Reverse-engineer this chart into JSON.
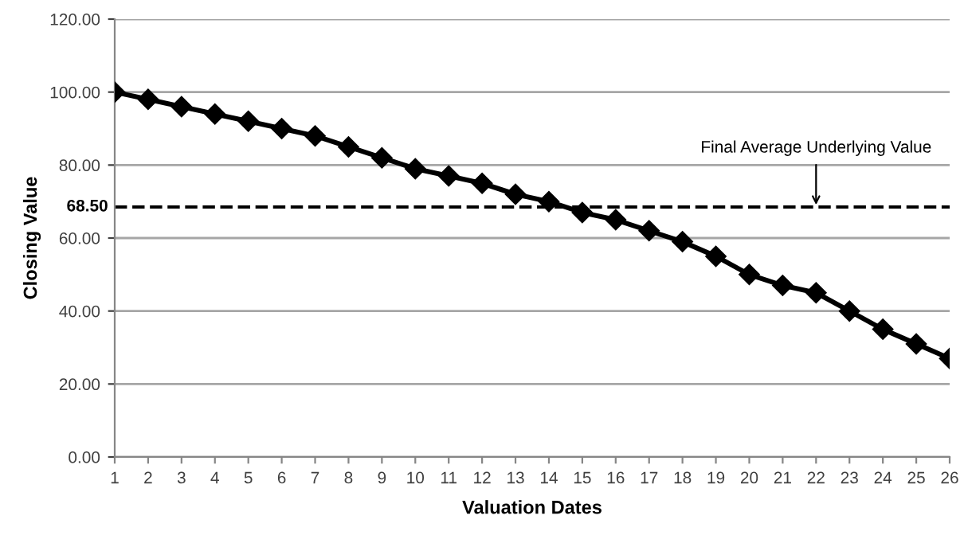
{
  "chart_data": {
    "type": "line",
    "xlabel": "Valuation Dates",
    "ylabel": "Closing Value",
    "categories": [
      "1",
      "2",
      "3",
      "4",
      "5",
      "6",
      "7",
      "8",
      "9",
      "10",
      "11",
      "12",
      "13",
      "14",
      "15",
      "16",
      "17",
      "18",
      "19",
      "20",
      "21",
      "22",
      "23",
      "24",
      "25",
      "26"
    ],
    "series": [
      {
        "color": "#000000",
        "values": [
          100,
          98,
          96,
          94,
          92,
          90,
          88,
          85,
          82,
          79,
          77,
          75,
          72,
          70,
          67,
          65,
          62,
          59,
          55,
          50,
          47,
          45,
          40,
          35,
          31,
          27
        ]
      }
    ],
    "ylim": [
      0,
      120
    ],
    "yticks": [
      {
        "value": 0,
        "label": "0.00"
      },
      {
        "value": 20,
        "label": "20.00"
      },
      {
        "value": 40,
        "label": "40.00"
      },
      {
        "value": 60,
        "label": "60.00"
      },
      {
        "value": 80,
        "label": "80.00"
      },
      {
        "value": 100,
        "label": "100.00"
      },
      {
        "value": 120,
        "label": "120.00"
      }
    ],
    "ref_lines": [
      {
        "axis": "y",
        "value": 68.5,
        "label": "68.50",
        "color": "#000000",
        "line_style": "dashed"
      }
    ],
    "annotations": [
      {
        "text": "Final Average Underlying Value",
        "x": "22",
        "y": 68.5
      }
    ],
    "grid": "y",
    "marker": "diamond",
    "line_style": "solid",
    "legend": false
  }
}
